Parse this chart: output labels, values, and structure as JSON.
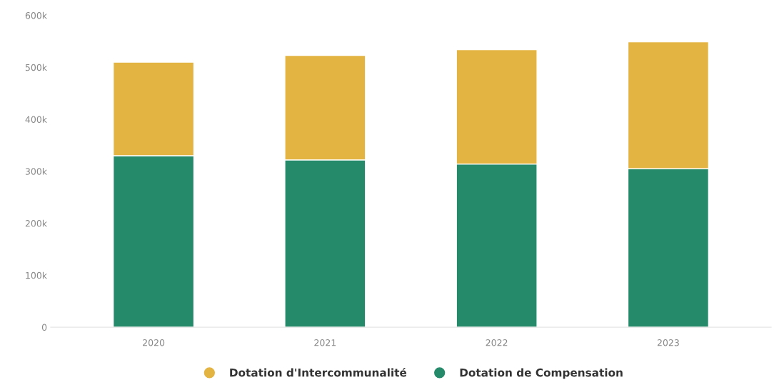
{
  "chart_data": {
    "type": "bar",
    "stacked": true,
    "categories": [
      "2020",
      "2021",
      "2022",
      "2023"
    ],
    "series": [
      {
        "name": "Dotation de Compensation",
        "color": "#258a6a",
        "values": [
          330000,
          322000,
          314000,
          305000
        ]
      },
      {
        "name": "Dotation d'Intercommunalité",
        "color": "#e4b443",
        "values": [
          180000,
          201000,
          220000,
          244000
        ]
      }
    ],
    "ylim": [
      0,
      600000
    ],
    "yticks": [
      0,
      {
        "value": 100000,
        "label": "100k"
      },
      {
        "value": 200000,
        "label": "200k"
      },
      {
        "value": 300000,
        "label": "300k"
      },
      {
        "value": 400000,
        "label": "400k"
      },
      {
        "value": 500000,
        "label": "500k"
      },
      {
        "value": 600000,
        "label": "600k"
      }
    ],
    "grid": false,
    "legend": "bottom"
  }
}
